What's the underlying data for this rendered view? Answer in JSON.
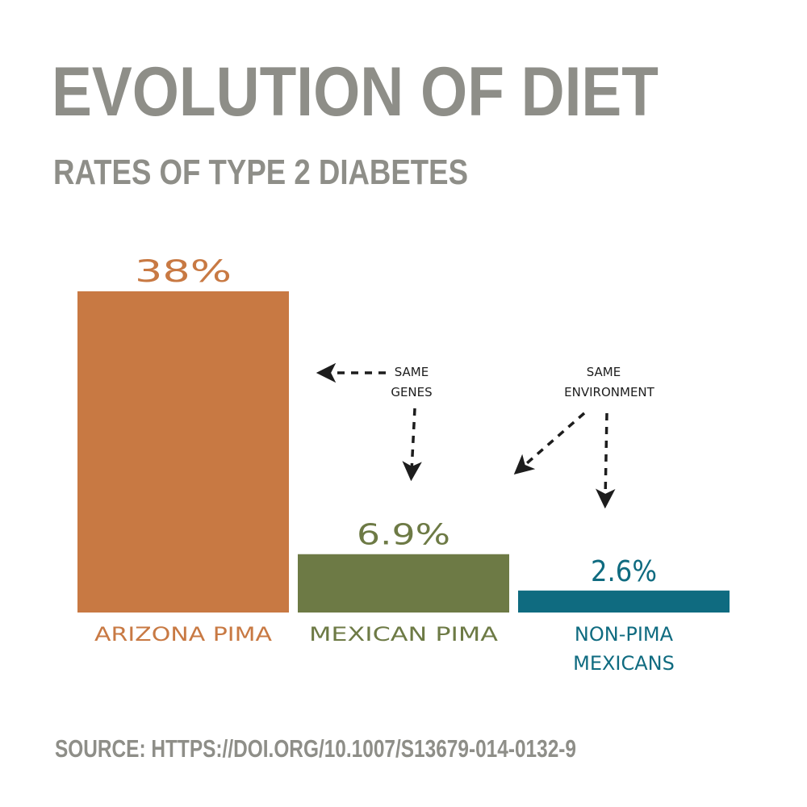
{
  "chart_data": {
    "type": "bar",
    "title": "EVOLUTION OF DIET",
    "subtitle": "RATES OF TYPE 2 DIABETES",
    "ylim": [
      0,
      38
    ],
    "grid": false,
    "bars": [
      {
        "label_lines": [
          "ARIZONA PIMA"
        ],
        "value": 38,
        "value_label": "38%",
        "color": "#c87943"
      },
      {
        "label_lines": [
          "MEXICAN PIMA"
        ],
        "value": 6.9,
        "value_label": "6.9%",
        "color": "#6d7a45"
      },
      {
        "label_lines": [
          "NON-PIMA",
          "MEXICANS"
        ],
        "value": 2.6,
        "value_label": "2.6%",
        "color": "#0f6b80"
      }
    ],
    "annotations": {
      "same_genes": [
        "SAME",
        "GENES"
      ],
      "same_environment": [
        "SAME",
        "ENVIRONMENT"
      ]
    },
    "source": "SOURCE: HTTPS://DOI.ORG/10.1007/S13679-014-0132-9"
  },
  "colors": {
    "title": "#8e8e88",
    "arrow": "#1d1d1d"
  }
}
